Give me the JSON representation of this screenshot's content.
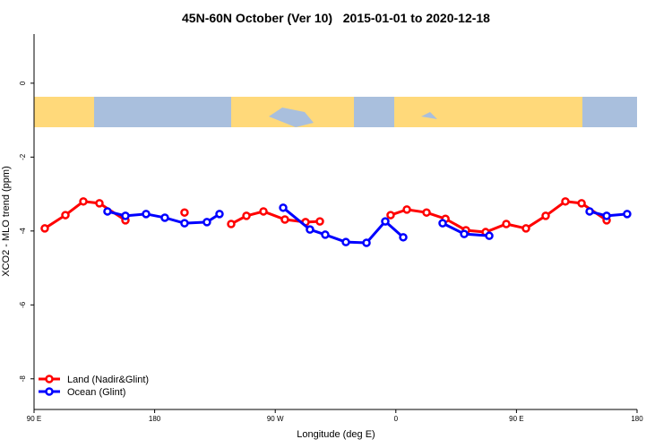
{
  "chart_data": {
    "type": "line",
    "title": "45N-60N October (Ver 10)   2015-01-01 to 2020-12-18",
    "x_label": "Longitude (deg E)",
    "y_label": "XCO2 - MLO trend (ppm)",
    "xlim": [
      90,
      540
    ],
    "xticks": [
      {
        "value": 90,
        "label": "90 E"
      },
      {
        "value": 180,
        "label": "180"
      },
      {
        "value": 270,
        "label": "90 W"
      },
      {
        "value": 360,
        "label": "0"
      },
      {
        "value": 450,
        "label": "90 E"
      },
      {
        "value": 540,
        "label": "180"
      }
    ],
    "ylim": [
      -8.83,
      1.33
    ],
    "yticks": [
      0,
      -2,
      -4,
      -6,
      -8
    ],
    "legend": "bottom-left",
    "series": [
      {
        "name": "Land (Nadir&Glint)",
        "color": "#ff0000",
        "x": [
          98.0,
          113.4,
          126.8,
          138.8,
          158.2,
          null,
          202.3,
          null,
          237.1,
          248.5,
          261.2,
          277.2,
          292.6,
          303.3,
          null,
          356.1,
          368.2,
          382.9,
          397.0,
          412.3,
          427.0,
          442.4,
          457.1,
          471.8,
          486.5,
          498.6,
          517.3
        ],
        "values": [
          -3.93,
          -3.57,
          -3.2,
          -3.25,
          -3.71,
          null,
          -3.5,
          null,
          -3.81,
          -3.59,
          -3.47,
          -3.69,
          -3.76,
          -3.74,
          null,
          -3.57,
          -3.42,
          -3.5,
          -3.67,
          -3.98,
          -4.03,
          -3.81,
          -3.93,
          -3.59,
          -3.2,
          -3.25,
          -3.71
        ]
      },
      {
        "name": "Ocean (Glint)",
        "color": "#0000ff",
        "x": [
          144.8,
          158.2,
          173.6,
          187.6,
          202.3,
          219.0,
          228.4,
          null,
          275.9,
          295.9,
          307.3,
          322.7,
          338.1,
          352.1,
          365.5,
          null,
          394.9,
          411.0,
          429.7,
          null,
          504.6,
          517.3,
          532.6
        ],
        "values": [
          -3.47,
          -3.59,
          -3.54,
          -3.64,
          -3.79,
          -3.76,
          -3.54,
          null,
          -3.37,
          -3.96,
          -4.1,
          -4.3,
          -4.32,
          -3.74,
          -4.17,
          null,
          -3.79,
          -4.08,
          -4.13,
          null,
          -3.47,
          -3.59,
          -3.54
        ]
      }
    ]
  }
}
